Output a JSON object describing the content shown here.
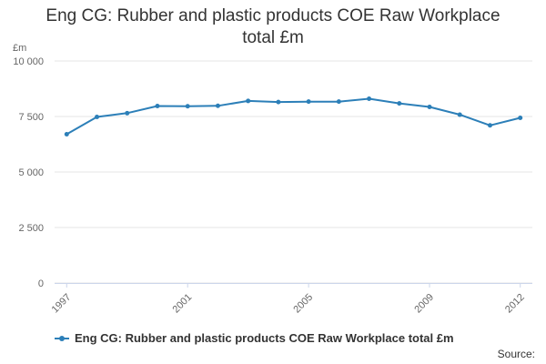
{
  "title_line1": "Eng CG: Rubber and plastic products COE Raw Workplace",
  "title_line2": "total £m",
  "source_label": "Source:",
  "colors": {
    "series": "#2c7fb8",
    "grid": "#e6e6e6",
    "axis": "#ccd6eb"
  },
  "chart_data": {
    "type": "line",
    "title": "Eng CG: Rubber and plastic products COE Raw Workplace total £m",
    "xlabel": "",
    "ylabel": "£m",
    "x": [
      1997,
      1998,
      1999,
      2000,
      2001,
      2002,
      2003,
      2004,
      2005,
      2006,
      2007,
      2008,
      2009,
      2010,
      2011,
      2012
    ],
    "x_ticks": [
      "1997",
      "2001",
      "2005",
      "2009",
      "2012"
    ],
    "y_ticks": [
      "0",
      "2 500",
      "5 000",
      "7 500",
      "10 000"
    ],
    "ylim": [
      0,
      10000
    ],
    "grid": true,
    "legend_position": "bottom-left",
    "series": [
      {
        "name": "Eng CG: Rubber and plastic products COE Raw Workplace total £m",
        "values": [
          6700,
          7480,
          7650,
          7970,
          7960,
          7980,
          8200,
          8150,
          8170,
          8170,
          8300,
          8090,
          7930,
          7580,
          7100,
          7440
        ]
      }
    ]
  }
}
